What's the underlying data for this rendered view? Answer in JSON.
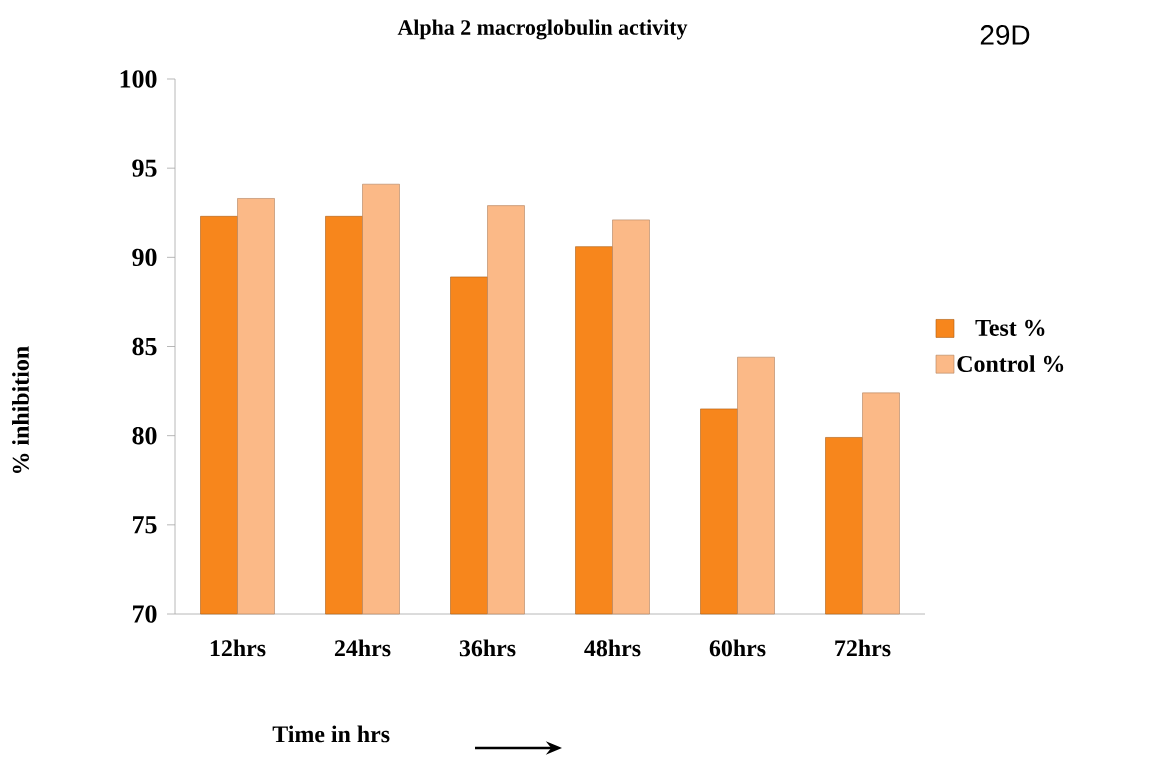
{
  "chart_data": {
    "type": "bar",
    "title": "Alpha 2 macroglobulin activity",
    "xlabel": "Time in hrs",
    "ylabel": "% inhibition",
    "annotations": [
      "29D"
    ],
    "categories": [
      "12hrs",
      "24hrs",
      "36hrs",
      "48hrs",
      "60hrs",
      "72hrs"
    ],
    "series": [
      {
        "name": "Test %",
        "color": "#f7861c",
        "values": [
          92.3,
          92.3,
          88.9,
          90.6,
          81.5,
          79.9
        ]
      },
      {
        "name": "Control %",
        "color": "#fbb987",
        "values": [
          93.3,
          94.1,
          92.9,
          92.1,
          84.4,
          82.4
        ]
      }
    ],
    "ylim": [
      70,
      100
    ],
    "yticks": [
      70,
      75,
      80,
      85,
      90,
      95,
      100
    ],
    "grid": false,
    "legend": "right"
  }
}
